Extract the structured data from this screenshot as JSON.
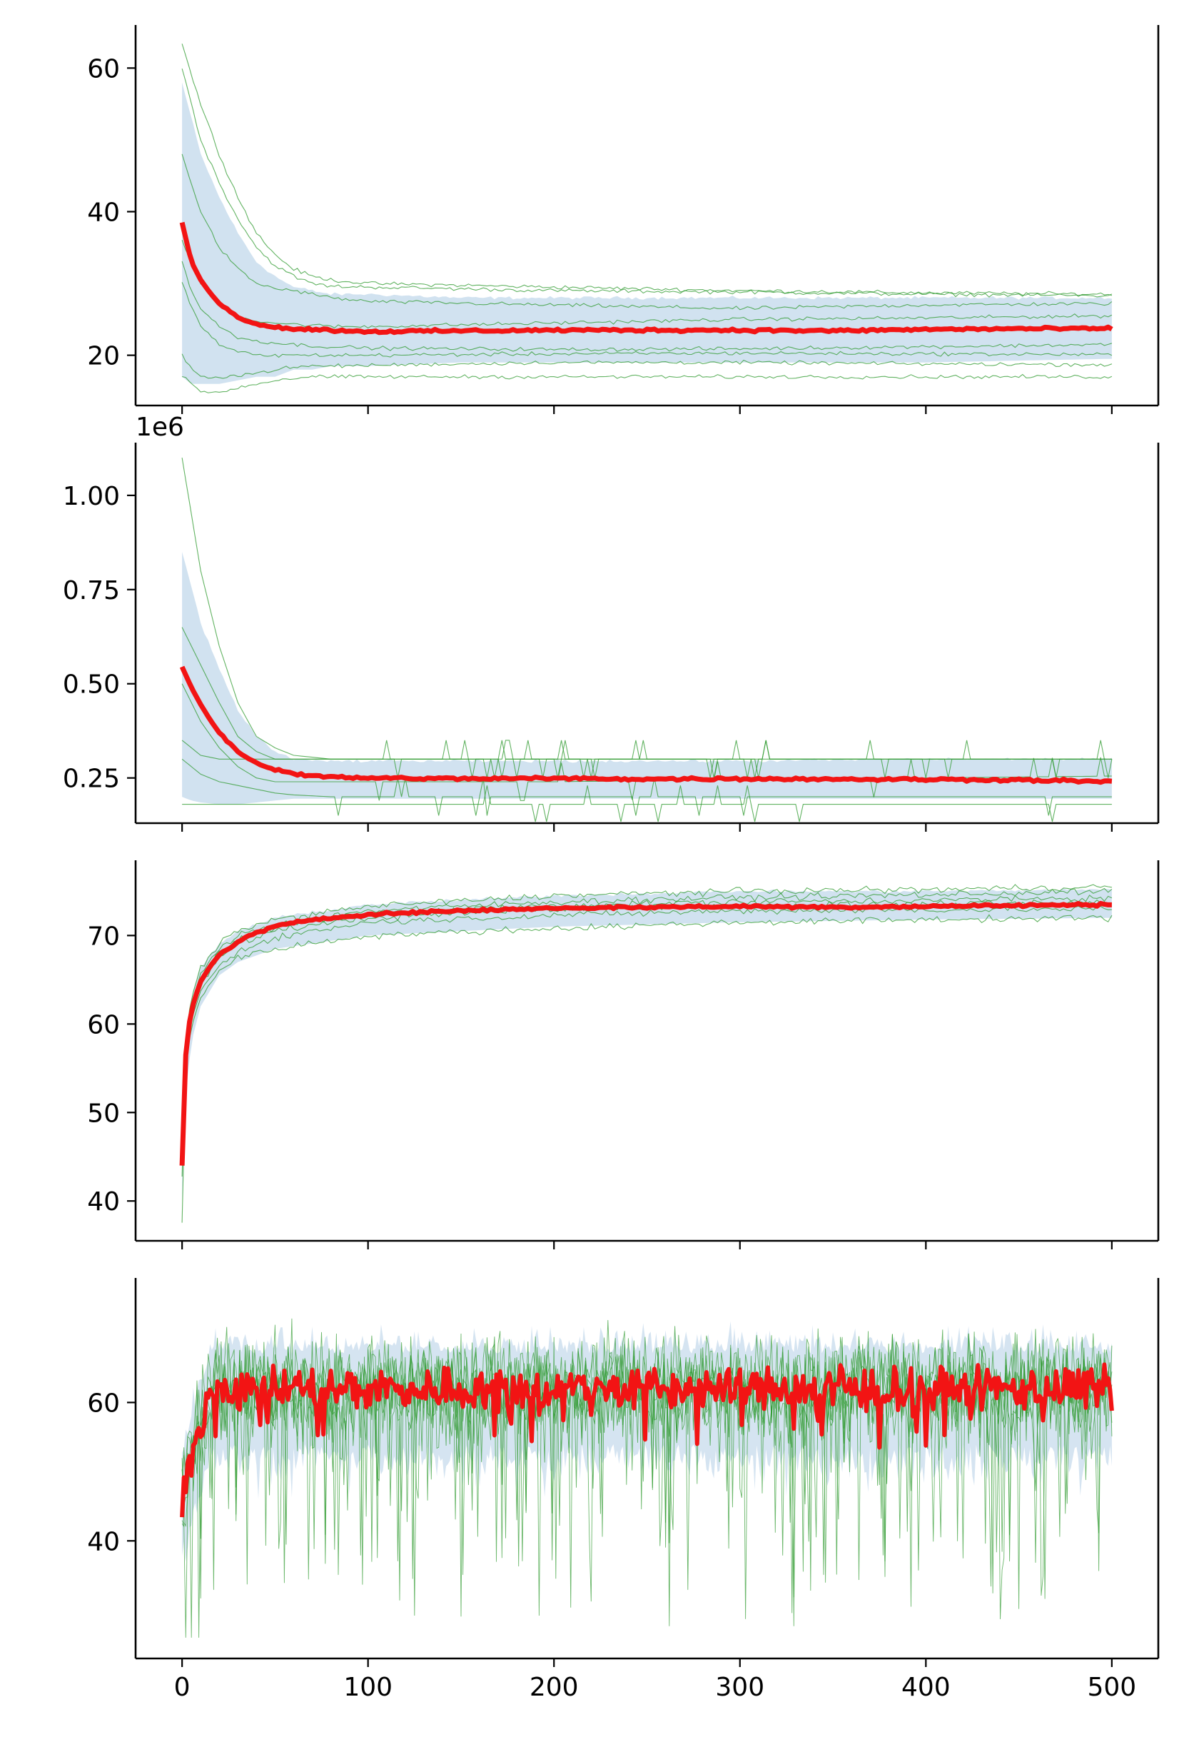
{
  "colors": {
    "mean_line": "#f21414",
    "runs": "#2e9a2e",
    "band": "#b9d2e8",
    "axes": "#000000"
  },
  "chart_data": [
    {
      "type": "line",
      "title": "",
      "xlabel": "",
      "ylabel": "",
      "xlim": [
        -25,
        525
      ],
      "ylim": [
        13,
        66
      ],
      "xticks": [
        0,
        100,
        200,
        300,
        400,
        500
      ],
      "xtick_labels_visible": false,
      "yticks": [
        20,
        40,
        60
      ],
      "ytick_labels": [
        "20",
        "40",
        "60"
      ],
      "offset_label": "",
      "legend": "none",
      "grid": false,
      "band": {
        "x": [
          0,
          5,
          10,
          20,
          30,
          40,
          50,
          60,
          70,
          80,
          100,
          150,
          200,
          300,
          400,
          500
        ],
        "lower": [
          17,
          16,
          16,
          16,
          16.5,
          17,
          17,
          18,
          18,
          18.5,
          18.5,
          19,
          19,
          19,
          19,
          19.5
        ],
        "upper": [
          58,
          53,
          48,
          42,
          37,
          33,
          31,
          29.5,
          29,
          28.5,
          28.5,
          28,
          28,
          28,
          28,
          28
        ]
      },
      "mean": {
        "x": [
          0,
          5,
          10,
          15,
          20,
          25,
          30,
          40,
          50,
          60,
          70,
          80,
          100,
          150,
          200,
          250,
          300,
          350,
          400,
          450,
          500
        ],
        "y": [
          38.5,
          33,
          30.5,
          28.7,
          27.2,
          26.2,
          25.3,
          24.4,
          23.9,
          23.7,
          23.6,
          23.5,
          23.3,
          23.4,
          23.5,
          23.5,
          23.5,
          23.4,
          23.6,
          23.7,
          23.7
        ]
      },
      "runs": [
        {
          "x": [
            0,
            5,
            10,
            20,
            30,
            40,
            50,
            60,
            70,
            80,
            100,
            200,
            300,
            400,
            500
          ],
          "y": [
            63.5,
            59,
            55,
            48,
            42,
            37,
            34,
            32,
            31,
            30.5,
            30,
            29.5,
            29,
            28.7,
            28.5
          ]
        },
        {
          "x": [
            0,
            5,
            10,
            20,
            30,
            40,
            50,
            60,
            70,
            80,
            100,
            200,
            300,
            400,
            500
          ],
          "y": [
            60,
            55,
            50,
            44,
            39,
            35,
            32.5,
            31,
            30,
            29.6,
            29.5,
            29,
            28.8,
            28.5,
            28.3
          ]
        },
        {
          "x": [
            0,
            5,
            10,
            20,
            30,
            40,
            50,
            60,
            70,
            80,
            100,
            200,
            300,
            400,
            500
          ],
          "y": [
            48,
            44,
            40,
            35,
            32,
            30,
            29.3,
            29,
            28.5,
            28,
            27.5,
            27,
            26.5,
            27,
            27.2
          ]
        },
        {
          "x": [
            0,
            5,
            10,
            20,
            30,
            40,
            50,
            60,
            70,
            80,
            100,
            200,
            300,
            400,
            500
          ],
          "y": [
            36,
            33,
            30,
            27,
            25.5,
            24.8,
            24.5,
            24.3,
            24.2,
            24,
            24,
            24.5,
            25,
            25.2,
            25.5
          ]
        },
        {
          "x": [
            0,
            5,
            10,
            20,
            30,
            40,
            50,
            60,
            70,
            80,
            100,
            200,
            300,
            400,
            500
          ],
          "y": [
            33,
            29,
            26.5,
            24,
            22.5,
            22,
            21.7,
            21.5,
            21.3,
            21.2,
            21,
            20.8,
            20.9,
            21.2,
            21.5
          ]
        },
        {
          "x": [
            0,
            5,
            10,
            20,
            30,
            40,
            50,
            60,
            70,
            80,
            100,
            200,
            300,
            400,
            500
          ],
          "y": [
            30,
            27,
            24,
            21.5,
            20.5,
            20,
            20,
            20,
            20,
            20,
            20,
            20.2,
            20.3,
            20.2,
            20.1
          ]
        },
        {
          "x": [
            0,
            5,
            10,
            20,
            30,
            40,
            50,
            60,
            70,
            80,
            100,
            200,
            300,
            400,
            500
          ],
          "y": [
            20,
            18,
            17,
            17,
            17.2,
            17.5,
            18,
            18.3,
            18.5,
            18.5,
            18.6,
            19,
            19,
            18.8,
            18.7
          ]
        },
        {
          "x": [
            0,
            5,
            10,
            20,
            30,
            40,
            50,
            60,
            70,
            80,
            100,
            200,
            300,
            400,
            500
          ],
          "y": [
            17,
            16,
            15,
            14.8,
            15.5,
            16,
            16.5,
            16.8,
            17,
            17,
            17,
            17,
            17,
            17,
            17
          ]
        }
      ]
    },
    {
      "type": "line",
      "title": "",
      "xlabel": "",
      "ylabel": "",
      "xlim": [
        -25,
        525
      ],
      "ylim": [
        130000,
        1140000
      ],
      "xticks": [
        0,
        100,
        200,
        300,
        400,
        500
      ],
      "xtick_labels_visible": false,
      "yticks": [
        250000,
        500000,
        750000,
        1000000
      ],
      "ytick_labels": [
        "0.25",
        "0.50",
        "0.75",
        "1.00"
      ],
      "offset_label": "1e6",
      "legend": "none",
      "grid": false,
      "band": {
        "x": [
          0,
          5,
          10,
          20,
          30,
          40,
          50,
          60,
          70,
          80,
          100,
          200,
          300,
          400,
          500
        ],
        "lower": [
          200000,
          190000,
          185000,
          180000,
          180000,
          185000,
          190000,
          195000,
          195000,
          195000,
          195000,
          195000,
          195000,
          195000,
          195000
        ],
        "upper": [
          850000,
          760000,
          660000,
          540000,
          430000,
          360000,
          320000,
          300000,
          295000,
          295000,
          295000,
          295000,
          295000,
          300000,
          300000
        ]
      },
      "mean": {
        "x": [
          0,
          5,
          10,
          15,
          20,
          25,
          30,
          40,
          50,
          60,
          70,
          80,
          100,
          150,
          200,
          250,
          300,
          350,
          400,
          450,
          500
        ],
        "y": [
          545000,
          490000,
          445000,
          405000,
          370000,
          345000,
          320000,
          290000,
          272000,
          262000,
          256000,
          252000,
          250000,
          248000,
          249000,
          247000,
          248000,
          247000,
          246000,
          245000,
          240000
        ]
      },
      "runs": [
        {
          "x": [
            0,
            5,
            10,
            20,
            30,
            40,
            50,
            60,
            80,
            100,
            200,
            300,
            400,
            500
          ],
          "y": [
            1100000,
            950000,
            800000,
            600000,
            450000,
            360000,
            330000,
            310000,
            300000,
            300000,
            300000,
            300000,
            300000,
            300000
          ]
        },
        {
          "x": [
            0,
            5,
            10,
            20,
            30,
            40,
            50,
            60,
            80,
            100,
            200,
            300,
            400,
            500
          ],
          "y": [
            650000,
            600000,
            550000,
            450000,
            360000,
            320000,
            300000,
            300000,
            300000,
            300000,
            300000,
            300000,
            300000,
            300000
          ]
        },
        {
          "x": [
            0,
            5,
            10,
            20,
            30,
            40,
            50,
            60,
            80,
            100,
            200,
            300,
            400,
            500
          ],
          "y": [
            350000,
            330000,
            310000,
            300000,
            300000,
            300000,
            300000,
            300000,
            300000,
            300000,
            300000,
            300000,
            300000,
            300000
          ]
        },
        {
          "x": [
            0,
            5,
            10,
            20,
            30,
            40,
            50,
            60,
            80,
            100,
            200,
            300,
            400,
            500
          ],
          "y": [
            500000,
            450000,
            400000,
            330000,
            280000,
            250000,
            240000,
            240000,
            240000,
            240000,
            240000,
            245000,
            250000,
            255000
          ]
        },
        {
          "x": [
            0,
            5,
            10,
            20,
            30,
            40,
            50,
            60,
            80,
            100,
            200,
            300,
            400,
            500
          ],
          "y": [
            300000,
            280000,
            260000,
            240000,
            230000,
            220000,
            210000,
            205000,
            200000,
            200000,
            200000,
            200000,
            200000,
            200000
          ]
        },
        {
          "x": [
            0,
            5,
            10,
            20,
            30,
            40,
            50,
            60,
            80,
            100,
            200,
            300,
            400,
            500
          ],
          "y": [
            180000,
            180000,
            180000,
            180000,
            180000,
            180000,
            180000,
            180000,
            180000,
            180000,
            180000,
            180000,
            180000,
            180000
          ]
        }
      ]
    },
    {
      "type": "line",
      "title": "",
      "xlabel": "",
      "ylabel": "",
      "xlim": [
        -25,
        525
      ],
      "ylim": [
        35.5,
        78.5
      ],
      "xticks": [
        0,
        100,
        200,
        300,
        400,
        500
      ],
      "xtick_labels_visible": false,
      "yticks": [
        40,
        50,
        60,
        70
      ],
      "ytick_labels": [
        "40",
        "50",
        "60",
        "70"
      ],
      "offset_label": "",
      "legend": "none",
      "grid": false,
      "band": {
        "x": [
          0,
          2,
          5,
          10,
          20,
          30,
          50,
          100,
          200,
          300,
          400,
          500
        ],
        "lower": [
          40,
          52,
          58,
          62,
          65.5,
          67,
          68.5,
          70,
          71,
          71.5,
          71.8,
          72
        ],
        "upper": [
          46,
          58,
          63,
          66.5,
          69,
          70.5,
          72,
          73.5,
          74.5,
          75,
          75,
          75.2
        ]
      },
      "mean": {
        "x": [
          0,
          1,
          2,
          3,
          5,
          7,
          10,
          15,
          20,
          30,
          40,
          50,
          70,
          100,
          150,
          200,
          250,
          300,
          350,
          400,
          450,
          500
        ],
        "y": [
          44,
          52,
          56.5,
          59,
          61.5,
          63,
          64.8,
          66.5,
          67.8,
          69.3,
          70.3,
          71,
          71.8,
          72.4,
          72.8,
          73.1,
          73.2,
          73.3,
          73.2,
          73.3,
          73.4,
          73.5
        ]
      },
      "runs": [
        {
          "x": [
            0,
            2,
            5,
            10,
            20,
            30,
            50,
            100,
            200,
            300,
            400,
            500
          ],
          "y": [
            37.5,
            55,
            60,
            63,
            66,
            67.5,
            68.5,
            70,
            70.8,
            71.5,
            71.8,
            72
          ]
        },
        {
          "x": [
            0,
            2,
            5,
            10,
            20,
            30,
            50,
            100,
            200,
            300,
            400,
            500
          ],
          "y": [
            43,
            57,
            62,
            65.5,
            68.5,
            70,
            71.3,
            72.8,
            73.8,
            74.3,
            74.6,
            75
          ]
        },
        {
          "x": [
            0,
            2,
            5,
            10,
            20,
            30,
            50,
            100,
            200,
            300,
            400,
            500
          ],
          "y": [
            45,
            58,
            63,
            66.3,
            69,
            70.6,
            71.8,
            73.3,
            74.5,
            75,
            75.2,
            75.5
          ]
        },
        {
          "x": [
            0,
            2,
            5,
            10,
            20,
            30,
            50,
            100,
            200,
            300,
            400,
            500
          ],
          "y": [
            44,
            57,
            61.5,
            64.8,
            67.5,
            69,
            70.6,
            72,
            73,
            73.4,
            73.5,
            73.7
          ]
        },
        {
          "x": [
            0,
            2,
            5,
            10,
            20,
            30,
            50,
            100,
            200,
            300,
            400,
            500
          ],
          "y": [
            44,
            56,
            60.5,
            63.8,
            66.5,
            68.2,
            69.8,
            71.5,
            72.3,
            72.8,
            72.9,
            73
          ]
        },
        {
          "x": [
            0,
            2,
            5,
            10,
            20,
            30,
            50,
            100,
            200,
            300,
            400,
            500
          ],
          "y": [
            45,
            57.5,
            62,
            65.3,
            68,
            69.6,
            71,
            72.5,
            73.4,
            73.8,
            74,
            74.2
          ]
        }
      ]
    },
    {
      "type": "line",
      "title": "",
      "xlabel": "",
      "ylabel": "",
      "xlim": [
        -25,
        525
      ],
      "ylim": [
        23,
        78
      ],
      "xticks": [
        0,
        100,
        200,
        300,
        400,
        500
      ],
      "xtick_labels": [
        "0",
        "100",
        "200",
        "300",
        "400",
        "500"
      ],
      "xtick_labels_visible": true,
      "yticks": [
        40,
        60
      ],
      "ytick_labels": [
        "40",
        "60"
      ],
      "offset_label": "",
      "legend": "none",
      "grid": false,
      "noise": {
        "runs": 6,
        "mean_level": 62,
        "mean_start": 47,
        "run_spread": 5,
        "run_min": 26,
        "run_max": 74
      }
    }
  ]
}
